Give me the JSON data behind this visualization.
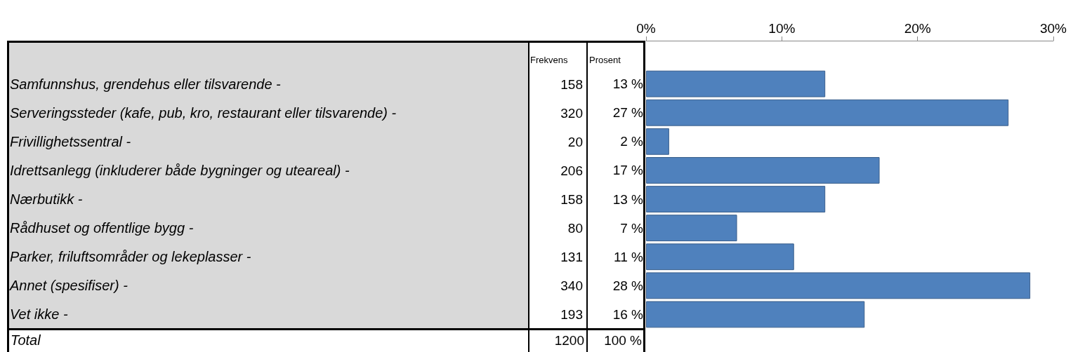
{
  "chart_data": {
    "type": "bar",
    "orientation": "horizontal",
    "categories": [
      "Samfunnshus, grendehus eller tilsvarende -",
      "Serveringssteder (kafe, pub, kro, restaurant eller tilsvarende) -",
      "Frivillighetssentral -",
      "Idrettsanlegg (inkluderer både bygninger og uteareal) -",
      "Nærbutikk -",
      "Rådhuset og offentlige bygg -",
      "Parker, friluftsområder og lekeplasser -",
      "Annet (spesifiser) -",
      "Vet ikke -"
    ],
    "values": [
      13.2,
      26.7,
      1.7,
      17.2,
      13.2,
      6.7,
      10.9,
      28.3,
      16.1
    ],
    "value_labels": [
      "13 %",
      "27 %",
      "2 %",
      "17 %",
      "13 %",
      "7 %",
      "11 %",
      "28 %",
      "16 %"
    ],
    "color": "#4f81bd",
    "x2lim": [
      0,
      30
    ],
    "x2ticks": [
      {
        "value": 0,
        "label": "0%"
      },
      {
        "value": 10,
        "label": "10%"
      },
      {
        "value": 20,
        "label": "20%"
      },
      {
        "value": 30,
        "label": "30%"
      }
    ],
    "grid": false,
    "annotations": [
      "Frekvens",
      "Prosent",
      "158",
      "320",
      "20",
      "206",
      "158",
      "80",
      "131",
      "340",
      "193",
      "Total",
      "1200",
      "100 %"
    ]
  }
}
